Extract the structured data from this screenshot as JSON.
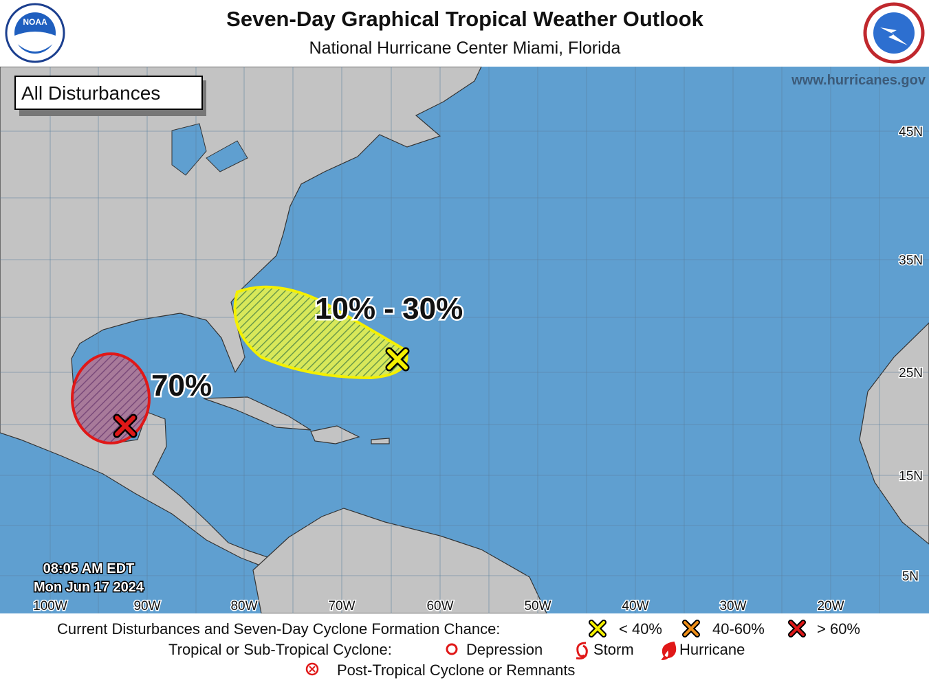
{
  "header": {
    "title": "Seven-Day Graphical Tropical Weather Outlook",
    "subtitle": "National Hurricane Center  Miami, Florida",
    "noaa_logo": "NOAA"
  },
  "map": {
    "label": "All Disturbances",
    "website": "www.hurricanes.gov",
    "issued_time": "08:05 AM EDT",
    "issued_date": "Mon Jun 17 2024",
    "longitudes": [
      "100W",
      "90W",
      "80W",
      "70W",
      "60W",
      "50W",
      "40W",
      "30W",
      "20W"
    ],
    "latitudes": [
      "45N",
      "35N",
      "25N",
      "15N",
      "5N"
    ],
    "areas": [
      {
        "label": "10% - 30%"
      },
      {
        "label": "70%"
      }
    ]
  },
  "legend": {
    "disturbances": {
      "title": "Current Disturbances and Seven-Day Cyclone Formation Chance:",
      "items": [
        "< 40%",
        "40-60%",
        "> 60%"
      ]
    },
    "cyclones": {
      "title": "Tropical or Sub-Tropical Cyclone:",
      "items": [
        "Depression",
        "Storm",
        "Hurricane"
      ]
    },
    "post_tropical": "Post-Tropical Cyclone or Remnants"
  }
}
